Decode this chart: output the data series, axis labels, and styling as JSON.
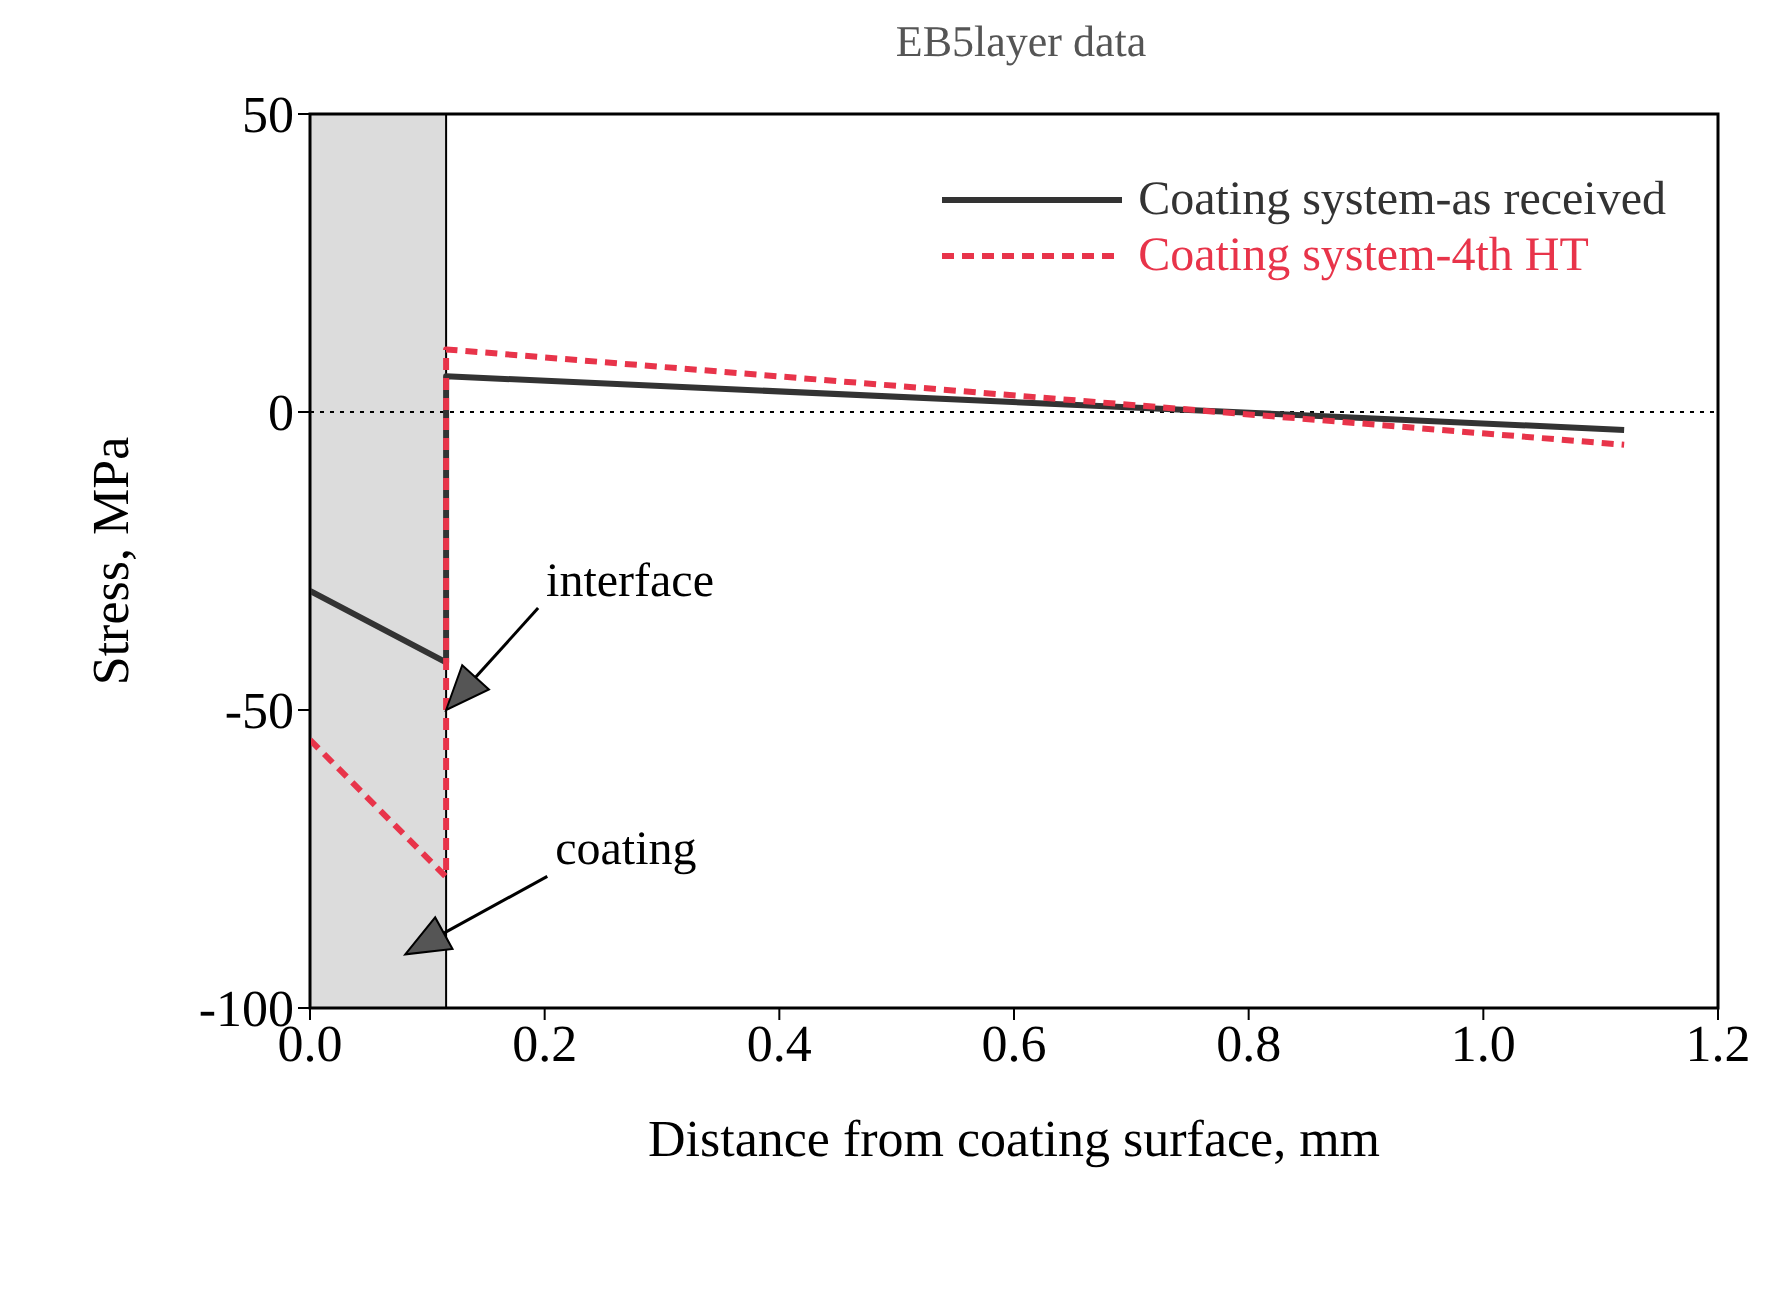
{
  "chart_data": {
    "type": "line",
    "title": "EB5layer data",
    "xlabel": "Distance from coating surface, mm",
    "ylabel": "Stress, MPa",
    "series": [
      {
        "name": "Coating system-as received",
        "color": "#333333",
        "line_style": "solid",
        "x": [
          0,
          0.116,
          0.116,
          1.12
        ],
        "values": [
          -30,
          -42,
          6,
          -3
        ]
      },
      {
        "name": "Coating system-4th HT",
        "color": "#e8344a",
        "line_style": "dashed",
        "x": [
          0,
          0.116,
          0.116,
          1.12
        ],
        "values": [
          -55,
          -78,
          10.5,
          -5.5
        ]
      }
    ],
    "xlim": [
      0,
      1.2
    ],
    "xticks": [
      {
        "value": 0,
        "label": "0.0"
      },
      0.2,
      0.4,
      0.6,
      0.8,
      {
        "value": 1,
        "label": "1.0"
      },
      1.2
    ],
    "ylim": [
      -100,
      50
    ],
    "yticks": [
      -100,
      -50,
      0,
      50
    ],
    "ref_lines": [
      {
        "axis": "y",
        "value": 0,
        "line_style": "dotted",
        "color": "#000000"
      }
    ],
    "bands": [
      {
        "axis": "x",
        "from": 0,
        "to": 0.116,
        "color": "#dcdcdc",
        "label": "coating"
      }
    ],
    "annotations": [
      {
        "text": "interface",
        "x": 0.116,
        "y": -50
      }
    ],
    "legend": "top right",
    "grid": false,
    "marker": "none"
  }
}
